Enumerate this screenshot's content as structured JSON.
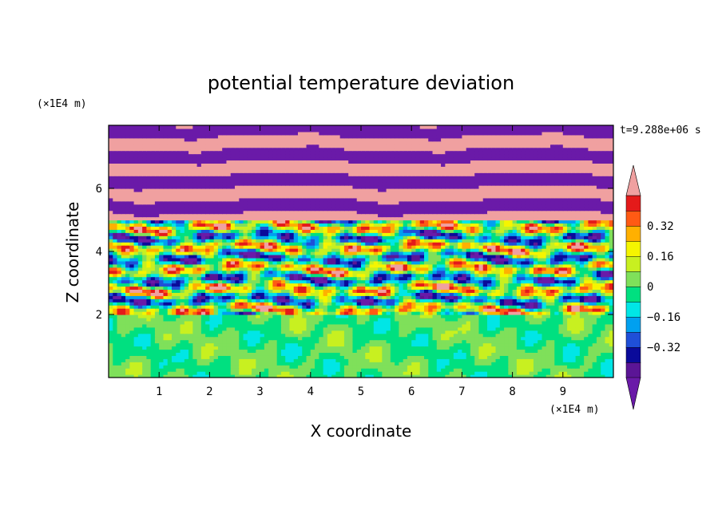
{
  "chart_data": {
    "type": "heatmap",
    "title": "potential temperature deviation",
    "xlabel": "X coordinate",
    "ylabel": "Z coordinate",
    "x_unit_label": "(×1E4 m)",
    "y_unit_label": "(×1E4 m)",
    "time_label": "t=9.288e+06 s",
    "xlim": [
      0,
      10
    ],
    "ylim": [
      0,
      8
    ],
    "x_ticks": [
      "1",
      "2",
      "3",
      "4",
      "5",
      "6",
      "7",
      "8",
      "9"
    ],
    "y_ticks": [
      "2",
      "4",
      "6"
    ],
    "colorbar": {
      "levels": [
        -0.48,
        -0.4,
        -0.32,
        -0.24,
        -0.16,
        -0.08,
        0,
        0.08,
        0.16,
        0.24,
        0.32,
        0.4,
        0.48
      ],
      "colors": [
        "#6a1aa8",
        "#5b1596",
        "#0a0a9a",
        "#1f4fd8",
        "#00a0f0",
        "#00e6e6",
        "#00e080",
        "#7fe05a",
        "#c8f020",
        "#f5f500",
        "#ffb000",
        "#ff5a14",
        "#e41a1a",
        "#f0a0a0"
      ],
      "tick_labels": [
        "0.32",
        "0.16",
        "0",
        "−0.16",
        "−0.32"
      ],
      "tick_values": [
        0.32,
        0.16,
        0,
        -0.16,
        -0.32
      ],
      "extend": "both"
    },
    "field_description_by_height": [
      {
        "z_range": [
          0,
          2
        ],
        "values": "mostly -0.08 to 0.08 (green)"
      },
      {
        "z_range": [
          2,
          5
        ],
        "values": "turbulent mixed layer, -0.48 to 0.48"
      },
      {
        "z_range": [
          5,
          8
        ],
        "values": "alternating layers near +0.48 (pink) and -0.48 (purple)"
      }
    ]
  }
}
